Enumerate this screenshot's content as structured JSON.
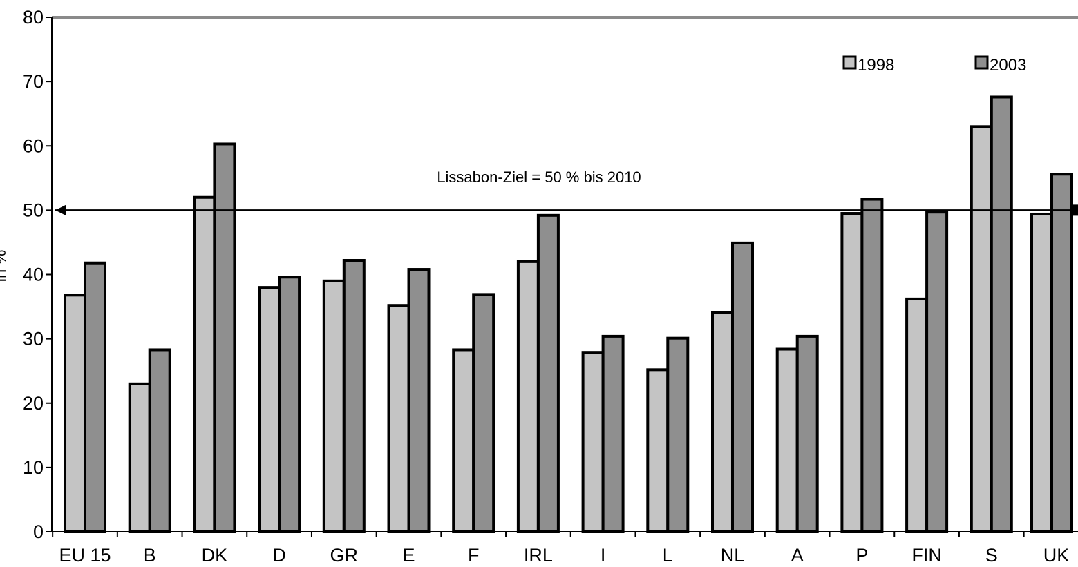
{
  "chart_data": {
    "type": "bar",
    "categories": [
      "EU 15",
      "B",
      "DK",
      "D",
      "GR",
      "E",
      "F",
      "IRL",
      "I",
      "L",
      "NL",
      "A",
      "P",
      "FIN",
      "S",
      "UK"
    ],
    "series": [
      {
        "name": "1998",
        "values": [
          36.8,
          23,
          52,
          38,
          39,
          35.2,
          28.3,
          42,
          27.9,
          25.2,
          34.1,
          28.4,
          49.5,
          36.2,
          63,
          49.4
        ]
      },
      {
        "name": "2003",
        "values": [
          41.8,
          28.3,
          60.3,
          39.6,
          42.2,
          40.8,
          36.9,
          49.2,
          30.4,
          30.1,
          44.9,
          30.4,
          51.7,
          49.7,
          67.6,
          55.6
        ]
      }
    ],
    "xlabel": "",
    "ylabel": "in %",
    "ylim": [
      0,
      80
    ],
    "yticks": [
      "0",
      "10",
      "20",
      "30",
      "40",
      "50",
      "60",
      "70",
      "80"
    ],
    "reference_line": {
      "value": 50,
      "label": "Lissabon-Ziel = 50 % bis 2010"
    },
    "legend_position": "top-right",
    "grid": false,
    "colors": {
      "1998": "#c4c4c4",
      "2003": "#8f8f8f",
      "outline": "#000000",
      "frame": "#8a8a8a"
    }
  }
}
